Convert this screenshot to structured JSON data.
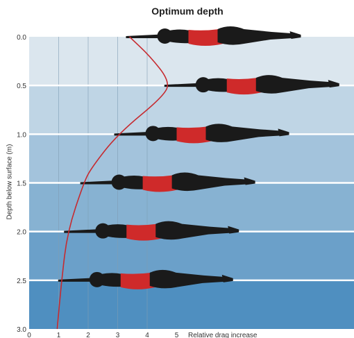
{
  "chart_data": {
    "type": "line",
    "title": "Optimum depth",
    "xlabel": "Relative drag increase",
    "ylabel": "Depth below surface (m)",
    "xlim": [
      0,
      5
    ],
    "ylim": [
      0.0,
      3.0
    ],
    "y_inverted": true,
    "xticks": [
      "0",
      "1",
      "2",
      "3",
      "4",
      "5"
    ],
    "yticks": [
      "0.0",
      "0.5",
      "1.0",
      "1.5",
      "2.0",
      "2.5",
      "3.0"
    ],
    "grid": {
      "horizontal": true,
      "vertical": true
    },
    "series": [
      {
        "values": [
          {
            "x": 3.4,
            "y": 0.0
          },
          {
            "x": 4.1,
            "y": 0.2
          },
          {
            "x": 4.75,
            "y": 0.45
          },
          {
            "x": 4.6,
            "y": 0.6
          },
          {
            "x": 3.0,
            "y": 1.0
          },
          {
            "x": 2.1,
            "y": 1.35
          },
          {
            "x": 1.85,
            "y": 1.5
          },
          {
            "x": 1.3,
            "y": 2.0
          },
          {
            "x": 1.1,
            "y": 2.5
          },
          {
            "x": 0.95,
            "y": 3.0
          }
        ]
      }
    ],
    "swimmer_depths": [
      0.0,
      0.5,
      1.0,
      1.5,
      2.0,
      2.5
    ],
    "colors": {
      "curve": "#c62a2f",
      "swimmer_body": "#1a1a1a",
      "swimsuit": "#cf2a2a",
      "band_top": "#dbe6ee",
      "band_bottom": "#4f8fc0",
      "grid_line": "#ffffff"
    }
  }
}
